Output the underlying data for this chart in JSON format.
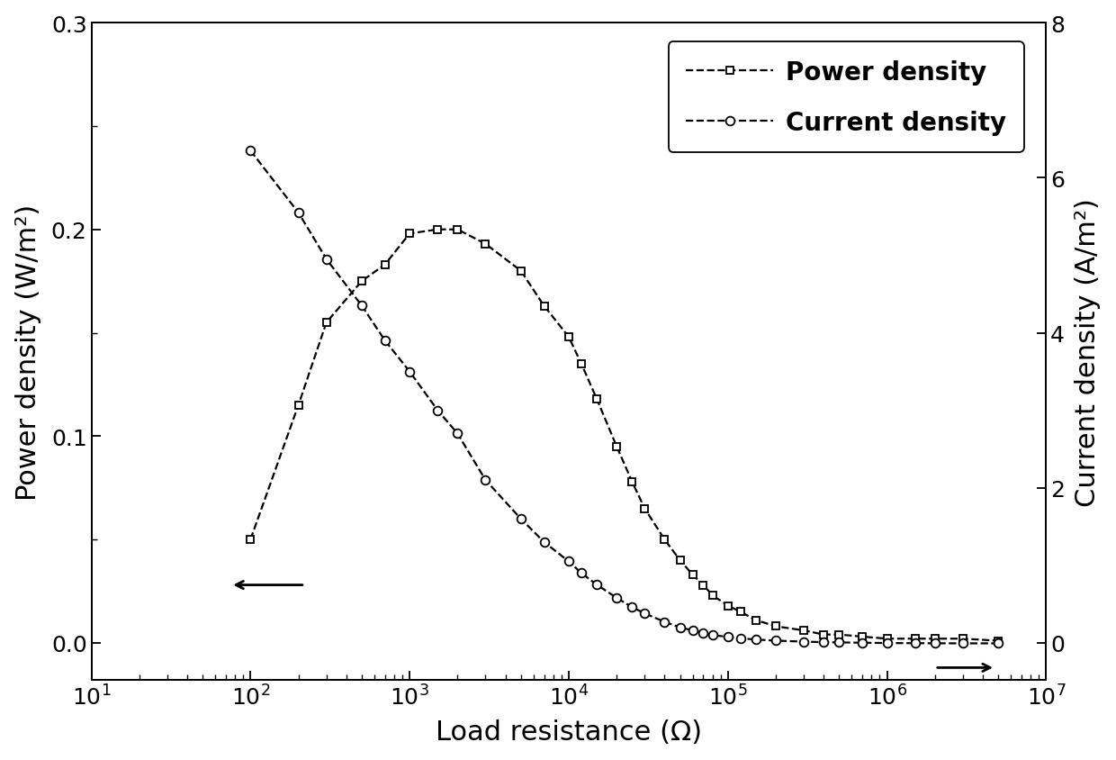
{
  "power_density_resistance": [
    100,
    200,
    300,
    500,
    700,
    1000,
    1500,
    2000,
    3000,
    5000,
    7000,
    10000,
    12000,
    15000,
    20000,
    25000,
    30000,
    40000,
    50000,
    60000,
    70000,
    80000,
    100000,
    120000,
    150000,
    200000,
    300000,
    400000,
    500000,
    700000,
    1000000,
    1500000,
    2000000,
    3000000,
    5000000
  ],
  "power_density_values": [
    0.05,
    0.115,
    0.155,
    0.175,
    0.183,
    0.198,
    0.2,
    0.2,
    0.193,
    0.18,
    0.163,
    0.148,
    0.135,
    0.118,
    0.095,
    0.078,
    0.065,
    0.05,
    0.04,
    0.033,
    0.028,
    0.023,
    0.018,
    0.015,
    0.011,
    0.008,
    0.006,
    0.004,
    0.004,
    0.003,
    0.002,
    0.002,
    0.002,
    0.002,
    0.001
  ],
  "current_density_resistance": [
    100,
    200,
    300,
    500,
    700,
    1000,
    1500,
    2000,
    3000,
    5000,
    7000,
    10000,
    12000,
    15000,
    20000,
    25000,
    30000,
    40000,
    50000,
    60000,
    70000,
    80000,
    100000,
    120000,
    150000,
    200000,
    300000,
    400000,
    500000,
    700000,
    1000000,
    1500000,
    2000000,
    3000000,
    5000000
  ],
  "current_density_values": [
    6.35,
    5.55,
    4.95,
    4.35,
    3.9,
    3.5,
    3.0,
    2.7,
    2.1,
    1.6,
    1.3,
    1.05,
    0.9,
    0.75,
    0.58,
    0.46,
    0.38,
    0.27,
    0.2,
    0.16,
    0.13,
    0.1,
    0.076,
    0.058,
    0.042,
    0.028,
    0.015,
    0.008,
    0.005,
    0.001,
    -0.003,
    -0.005,
    -0.006,
    -0.007,
    -0.007
  ],
  "ylabel_left": "Power density (W/m²)",
  "ylabel_right": "Current density (A/m²)",
  "xlabel": "Load resistance (Ω)",
  "ylim_left": [
    -0.018,
    0.3
  ],
  "ylim_right": [
    -0.48,
    8.0
  ],
  "xlim": [
    10,
    10000000.0
  ],
  "yticks_left": [
    0.0,
    0.1,
    0.2,
    0.3
  ],
  "yticks_right": [
    0,
    2,
    4,
    6,
    8
  ],
  "legend_labels": [
    "Power density",
    "Current density"
  ],
  "background_color": "#ffffff",
  "line_color": "#000000"
}
